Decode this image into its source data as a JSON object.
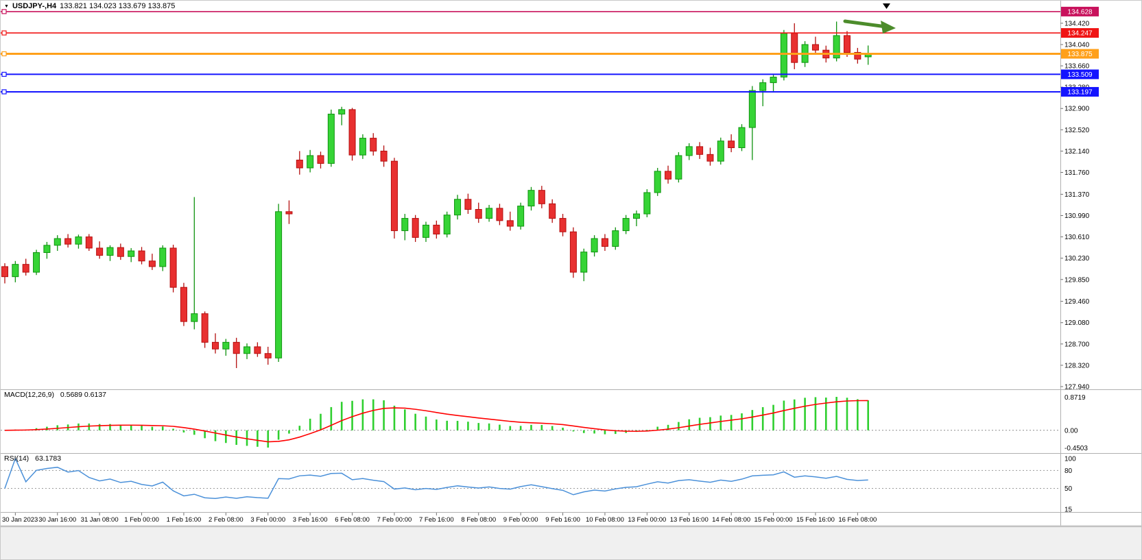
{
  "header": {
    "dropdown_icon": "▼",
    "symbol": "USDJPY-,H4",
    "ohlc": "133.821 134.023 133.679 133.875"
  },
  "chart_data": {
    "type": "candlestick",
    "symbol": "USDJPY-",
    "timeframe": "H4",
    "current_ohlc": {
      "open": 133.821,
      "high": 134.023,
      "low": 133.679,
      "close": 133.875
    },
    "price_axis": {
      "ylim": [
        127.94,
        134.7
      ],
      "ticks": [
        "134.420",
        "134.040",
        "133.660",
        "133.280",
        "132.900",
        "132.520",
        "132.140",
        "131.760",
        "131.370",
        "130.990",
        "130.610",
        "130.230",
        "129.850",
        "129.460",
        "129.080",
        "128.700",
        "128.320",
        "127.940"
      ]
    },
    "time_axis": {
      "labels": [
        "30 Jan 2023",
        "30 Jan 16:00",
        "31 Jan 08:00",
        "1 Feb 00:00",
        "1 Feb 16:00",
        "2 Feb 08:00",
        "3 Feb 00:00",
        "3 Feb 16:00",
        "6 Feb 08:00",
        "7 Feb 00:00",
        "7 Feb 16:00",
        "8 Feb 08:00",
        "9 Feb 00:00",
        "9 Feb 16:00",
        "10 Feb 08:00",
        "13 Feb 00:00",
        "13 Feb 16:00",
        "14 Feb 08:00",
        "15 Feb 00:00",
        "15 Feb 16:00",
        "16 Feb 08:00"
      ]
    },
    "candles_ohlc": [
      [
        130.08,
        130.14,
        129.78,
        129.9
      ],
      [
        129.9,
        130.18,
        129.8,
        130.12
      ],
      [
        130.12,
        130.22,
        129.92,
        129.98
      ],
      [
        129.98,
        130.38,
        129.93,
        130.33
      ],
      [
        130.33,
        130.52,
        130.22,
        130.46
      ],
      [
        130.46,
        130.64,
        130.36,
        130.58
      ],
      [
        130.58,
        130.66,
        130.42,
        130.48
      ],
      [
        130.48,
        130.65,
        130.4,
        130.61
      ],
      [
        130.61,
        130.66,
        130.36,
        130.41
      ],
      [
        130.41,
        130.53,
        130.22,
        130.28
      ],
      [
        130.28,
        130.46,
        130.18,
        130.42
      ],
      [
        130.42,
        130.49,
        130.2,
        130.26
      ],
      [
        130.26,
        130.41,
        130.16,
        130.36
      ],
      [
        130.36,
        130.43,
        130.12,
        130.18
      ],
      [
        130.18,
        130.31,
        130.02,
        130.08
      ],
      [
        130.08,
        130.46,
        130.0,
        130.41
      ],
      [
        130.41,
        130.47,
        129.62,
        129.71
      ],
      [
        129.71,
        129.79,
        129.02,
        129.1
      ],
      [
        129.1,
        131.32,
        128.96,
        129.24
      ],
      [
        129.24,
        129.28,
        128.63,
        128.73
      ],
      [
        128.73,
        128.89,
        128.53,
        128.61
      ],
      [
        128.61,
        128.79,
        128.49,
        128.73
      ],
      [
        128.73,
        128.81,
        128.27,
        128.53
      ],
      [
        128.53,
        128.71,
        128.43,
        128.65
      ],
      [
        128.65,
        128.73,
        128.47,
        128.53
      ],
      [
        128.53,
        128.65,
        128.33,
        128.45
      ],
      [
        128.45,
        131.2,
        128.38,
        131.06
      ],
      [
        131.06,
        131.26,
        130.84,
        131.02
      ],
      [
        131.98,
        132.14,
        131.72,
        131.84
      ],
      [
        131.84,
        132.16,
        131.76,
        132.06
      ],
      [
        132.06,
        132.13,
        131.83,
        131.92
      ],
      [
        131.92,
        132.88,
        131.86,
        132.8
      ],
      [
        132.8,
        132.93,
        132.6,
        132.88
      ],
      [
        132.88,
        132.91,
        131.97,
        132.07
      ],
      [
        132.07,
        132.44,
        132.0,
        132.37
      ],
      [
        132.37,
        132.46,
        132.06,
        132.14
      ],
      [
        132.14,
        132.24,
        131.86,
        131.96
      ],
      [
        131.96,
        132.02,
        130.58,
        130.72
      ],
      [
        130.72,
        131.02,
        130.55,
        130.94
      ],
      [
        130.94,
        131.0,
        130.52,
        130.6
      ],
      [
        130.6,
        130.88,
        130.52,
        130.82
      ],
      [
        130.82,
        130.9,
        130.58,
        130.66
      ],
      [
        130.66,
        131.06,
        130.6,
        131.0
      ],
      [
        131.0,
        131.36,
        130.92,
        131.28
      ],
      [
        131.28,
        131.38,
        131.02,
        131.1
      ],
      [
        131.1,
        131.22,
        130.86,
        130.94
      ],
      [
        130.94,
        131.18,
        130.88,
        131.12
      ],
      [
        131.12,
        131.2,
        130.82,
        130.9
      ],
      [
        130.9,
        131.06,
        130.72,
        130.8
      ],
      [
        130.8,
        131.22,
        130.74,
        131.16
      ],
      [
        131.16,
        131.5,
        131.08,
        131.44
      ],
      [
        131.44,
        131.52,
        131.12,
        131.2
      ],
      [
        131.2,
        131.28,
        130.86,
        130.94
      ],
      [
        130.94,
        131.02,
        130.62,
        130.7
      ],
      [
        130.7,
        130.78,
        129.88,
        129.98
      ],
      [
        129.98,
        130.4,
        129.82,
        130.34
      ],
      [
        130.34,
        130.64,
        130.26,
        130.58
      ],
      [
        130.58,
        130.66,
        130.36,
        130.44
      ],
      [
        130.44,
        130.78,
        130.38,
        130.72
      ],
      [
        130.72,
        131.0,
        130.66,
        130.94
      ],
      [
        130.94,
        131.08,
        130.8,
        131.02
      ],
      [
        131.02,
        131.46,
        130.96,
        131.4
      ],
      [
        131.4,
        131.84,
        131.34,
        131.78
      ],
      [
        131.78,
        131.88,
        131.56,
        131.64
      ],
      [
        131.64,
        132.12,
        131.58,
        132.06
      ],
      [
        132.06,
        132.28,
        131.98,
        132.22
      ],
      [
        132.22,
        132.3,
        132.0,
        132.08
      ],
      [
        132.08,
        132.2,
        131.88,
        131.96
      ],
      [
        131.96,
        132.38,
        131.9,
        132.32
      ],
      [
        132.32,
        132.44,
        132.12,
        132.2
      ],
      [
        132.2,
        132.62,
        132.14,
        132.56
      ],
      [
        132.56,
        133.3,
        131.98,
        133.22
      ],
      [
        133.22,
        133.42,
        132.94,
        133.36
      ],
      [
        133.36,
        133.52,
        133.2,
        133.46
      ],
      [
        133.46,
        134.3,
        133.4,
        134.24
      ],
      [
        134.24,
        134.42,
        133.6,
        133.72
      ],
      [
        133.72,
        134.1,
        133.64,
        134.04
      ],
      [
        134.04,
        134.18,
        133.86,
        133.94
      ],
      [
        133.94,
        134.02,
        133.72,
        133.8
      ],
      [
        133.8,
        134.45,
        133.74,
        134.2
      ],
      [
        134.2,
        134.28,
        133.82,
        133.9
      ],
      [
        133.9,
        133.98,
        133.7,
        133.78
      ],
      [
        133.821,
        134.023,
        133.679,
        133.875
      ]
    ],
    "hlines": [
      {
        "price": 134.628,
        "label": "134.628",
        "color": "#C8125C",
        "width": 1.6
      },
      {
        "price": 134.247,
        "label": "134.247",
        "color": "#F01414",
        "width": 1.6
      },
      {
        "price": 133.875,
        "label": "133.875",
        "color": "#FFA01A",
        "width": 3
      },
      {
        "price": 133.509,
        "label": "133.509",
        "color": "#1414FF",
        "width": 2
      },
      {
        "price": 133.197,
        "label": "133.197",
        "color": "#1414FF",
        "width": 2
      }
    ],
    "arrow_annotation": {
      "color": "#4C8C2B",
      "direction": "right"
    },
    "shift_marker_icon": "▼",
    "candle_colors": {
      "bull": "#36D436",
      "bull_border": "#0F930F",
      "bear": "#E83030",
      "bear_border": "#B40F0F"
    },
    "colors": {
      "background": "#ffffff",
      "axis_text": "#000000",
      "separator": "#b0b0b0"
    },
    "indicators": [
      {
        "id": "macd",
        "title": "MACD(12,26,9)",
        "values": "0.5689 0.6137",
        "fast": 12,
        "slow": 26,
        "signal": 9,
        "scale_labels": [
          "0.8719",
          "0.00",
          "-0.4503"
        ],
        "scale_max": 0.8719,
        "scale_min": -0.4503,
        "histogram_color": "#2FCF2F",
        "signal_color": "#FF0000"
      },
      {
        "id": "rsi",
        "title": "RSI(14)",
        "values": "63.1783",
        "period": 14,
        "scale_labels": [
          "100",
          "80",
          "50",
          "15"
        ],
        "scale_max": 100,
        "scale_min": 15,
        "levels": [
          80,
          50
        ],
        "line_color": "#4A90D9"
      }
    ]
  }
}
